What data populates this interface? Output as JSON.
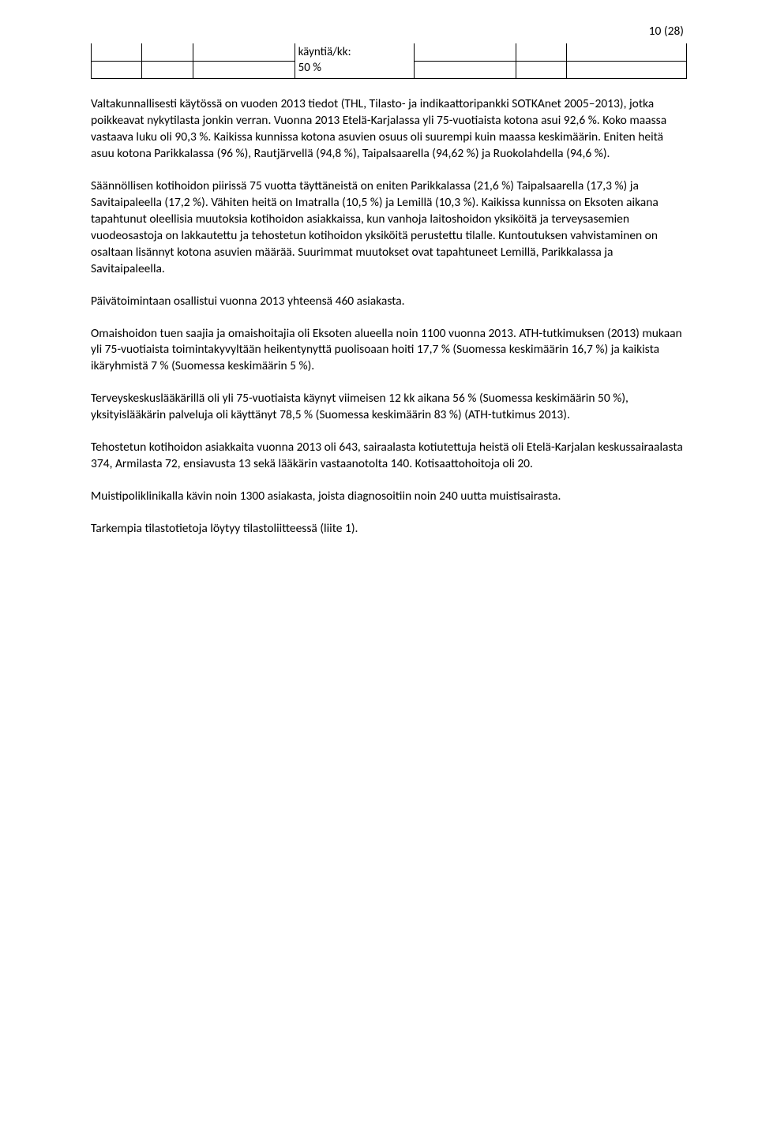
{
  "page_number": "10 (28)",
  "table_fragment": {
    "cell_text_line1": "käyntiä/kk:",
    "cell_text_line2": "50 %"
  },
  "paragraphs": {
    "p1": "Valtakunnallisesti käytössä on vuoden 2013 tiedot (THL, Tilasto- ja indikaattoripankki SOTKAnet 2005–2013), jotka poikkeavat nykytilasta jonkin verran. Vuonna 2013 Etelä-Karjalassa yli 75-vuotiaista kotona asui 92,6 %. Koko maassa vastaava luku oli 90,3 %. Kaikissa kunnissa kotona asuvien osuus oli suurempi kuin maassa keskimäärin. Eniten heitä asuu kotona Parikkalassa (96 %), Rautjärvellä (94,8 %), Taipalsaarella (94,62 %) ja Ruokolahdella (94,6 %).",
    "p2": "Säännöllisen kotihoidon piirissä 75 vuotta täyttäneistä on eniten Parikkalassa (21,6 %) Taipalsaarella (17,3 %) ja Savitaipaleella (17,2 %). Vähiten heitä on Imatralla (10,5 %) ja Lemillä (10,3 %). Kaikissa kunnissa on Eksoten aikana tapahtunut oleellisia muutoksia kotihoidon asiakkaissa, kun vanhoja laitoshoidon yksiköitä ja terveysasemien vuodeosastoja on lakkautettu ja tehostetun kotihoidon yksiköitä perustettu tilalle. Kuntoutuksen vahvistaminen on osaltaan lisännyt kotona asuvien määrää. Suurimmat muutokset ovat tapahtuneet Lemillä, Parikkalassa ja Savitaipaleella.",
    "p3": "Päivätoimintaan osallistui vuonna 2013 yhteensä 460 asiakasta.",
    "p4": "Omaishoidon tuen saajia ja omaishoitajia oli Eksoten alueella noin 1100 vuonna 2013.  ATH-tutkimuksen (2013) mukaan yli 75-vuotiaista toimintakyvyltään heikentynyttä puolisoaan hoiti 17,7 % (Suomessa keskimäärin 16,7 %) ja kaikista ikäryhmistä 7 % (Suomessa keskimäärin 5 %).",
    "p5": "Terveyskeskuslääkärillä oli yli 75-vuotiaista käynyt viimeisen 12 kk aikana 56 % (Suomessa keskimäärin 50 %), yksityislääkärin palveluja oli käyttänyt 78,5 % (Suomessa keskimäärin 83 %) (ATH-tutkimus 2013).",
    "p6": "Tehostetun kotihoidon asiakkaita vuonna 2013 oli 643, sairaalasta kotiutettuja heistä oli Etelä-Karjalan keskussairaalasta 374, Armilasta 72, ensiavusta 13 sekä lääkärin vastaanotolta 140. Kotisaattohoitoja oli 20.",
    "p7": "Muistipoliklinikalla kävin noin 1300 asiakasta, joista diagnosoitiin noin 240 uutta muistisairasta.",
    "p8": "Tarkempia tilastotietoja löytyy tilastoliitteessä (liite 1)."
  }
}
